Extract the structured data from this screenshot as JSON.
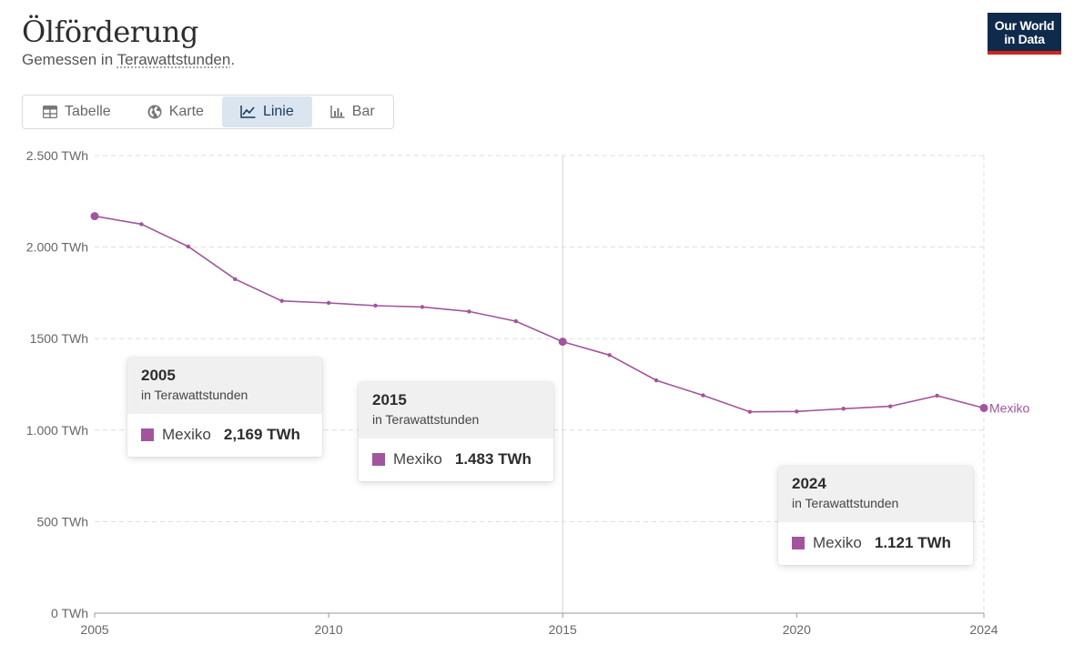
{
  "header": {
    "title": "Ölförderung",
    "subtitle_prefix": "Gemessen in ",
    "subtitle_unit": "Terawattstunden",
    "subtitle_suffix": "."
  },
  "logo": {
    "line1": "Our World",
    "line2": "in Data"
  },
  "tabs": [
    {
      "label": "Tabelle",
      "icon": "table-icon",
      "active": false
    },
    {
      "label": "Karte",
      "icon": "globe-icon",
      "active": false
    },
    {
      "label": "Linie",
      "icon": "line-chart-icon",
      "active": true
    },
    {
      "label": "Bar",
      "icon": "bar-chart-icon",
      "active": false
    }
  ],
  "colors": {
    "series": "#a2559c",
    "grid": "#dddddd",
    "axis_text": "#666666",
    "active_tab_bg": "#dbe5f0",
    "logo_bg": "#0f2a4a",
    "logo_accent": "#ce261e"
  },
  "chart_data": {
    "type": "line",
    "x": [
      2005,
      2006,
      2007,
      2008,
      2009,
      2010,
      2011,
      2012,
      2013,
      2014,
      2015,
      2016,
      2017,
      2018,
      2019,
      2020,
      2021,
      2022,
      2023,
      2024
    ],
    "series": [
      {
        "name": "Mexiko",
        "values": [
          2169,
          2125,
          2003,
          1825,
          1706,
          1695,
          1680,
          1673,
          1648,
          1595,
          1483,
          1410,
          1272,
          1190,
          1100,
          1102,
          1117,
          1130,
          1188,
          1121
        ]
      }
    ],
    "ylim": [
      0,
      2500
    ],
    "xlim": [
      2005,
      2024
    ],
    "y_ticks": [
      0,
      500,
      1000,
      1500,
      2000,
      2500
    ],
    "y_tick_labels": [
      "0 TWh",
      "500 TWh",
      "1.000 TWh",
      "1500 TWh",
      "2.000 TWh",
      "2.500 TWh"
    ],
    "x_ticks": [
      2005,
      2010,
      2015,
      2020,
      2024
    ],
    "x_tick_labels": [
      "2005",
      "2010",
      "2015",
      "2020",
      "2024"
    ],
    "highlighted_x": [
      2005,
      2015,
      2024
    ],
    "hover_line_x": 2015,
    "grid": true,
    "line_label": "Mexiko"
  },
  "tooltips": [
    {
      "year": "2005",
      "unit": "in Terawattstunden",
      "entity": "Mexiko",
      "value": "2,169 TWh"
    },
    {
      "year": "2015",
      "unit": "in Terawattstunden",
      "entity": "Mexiko",
      "value": "1.483 TWh"
    },
    {
      "year": "2024",
      "unit": "in Terawattstunden",
      "entity": "Mexiko",
      "value": "1.121 TWh"
    }
  ]
}
